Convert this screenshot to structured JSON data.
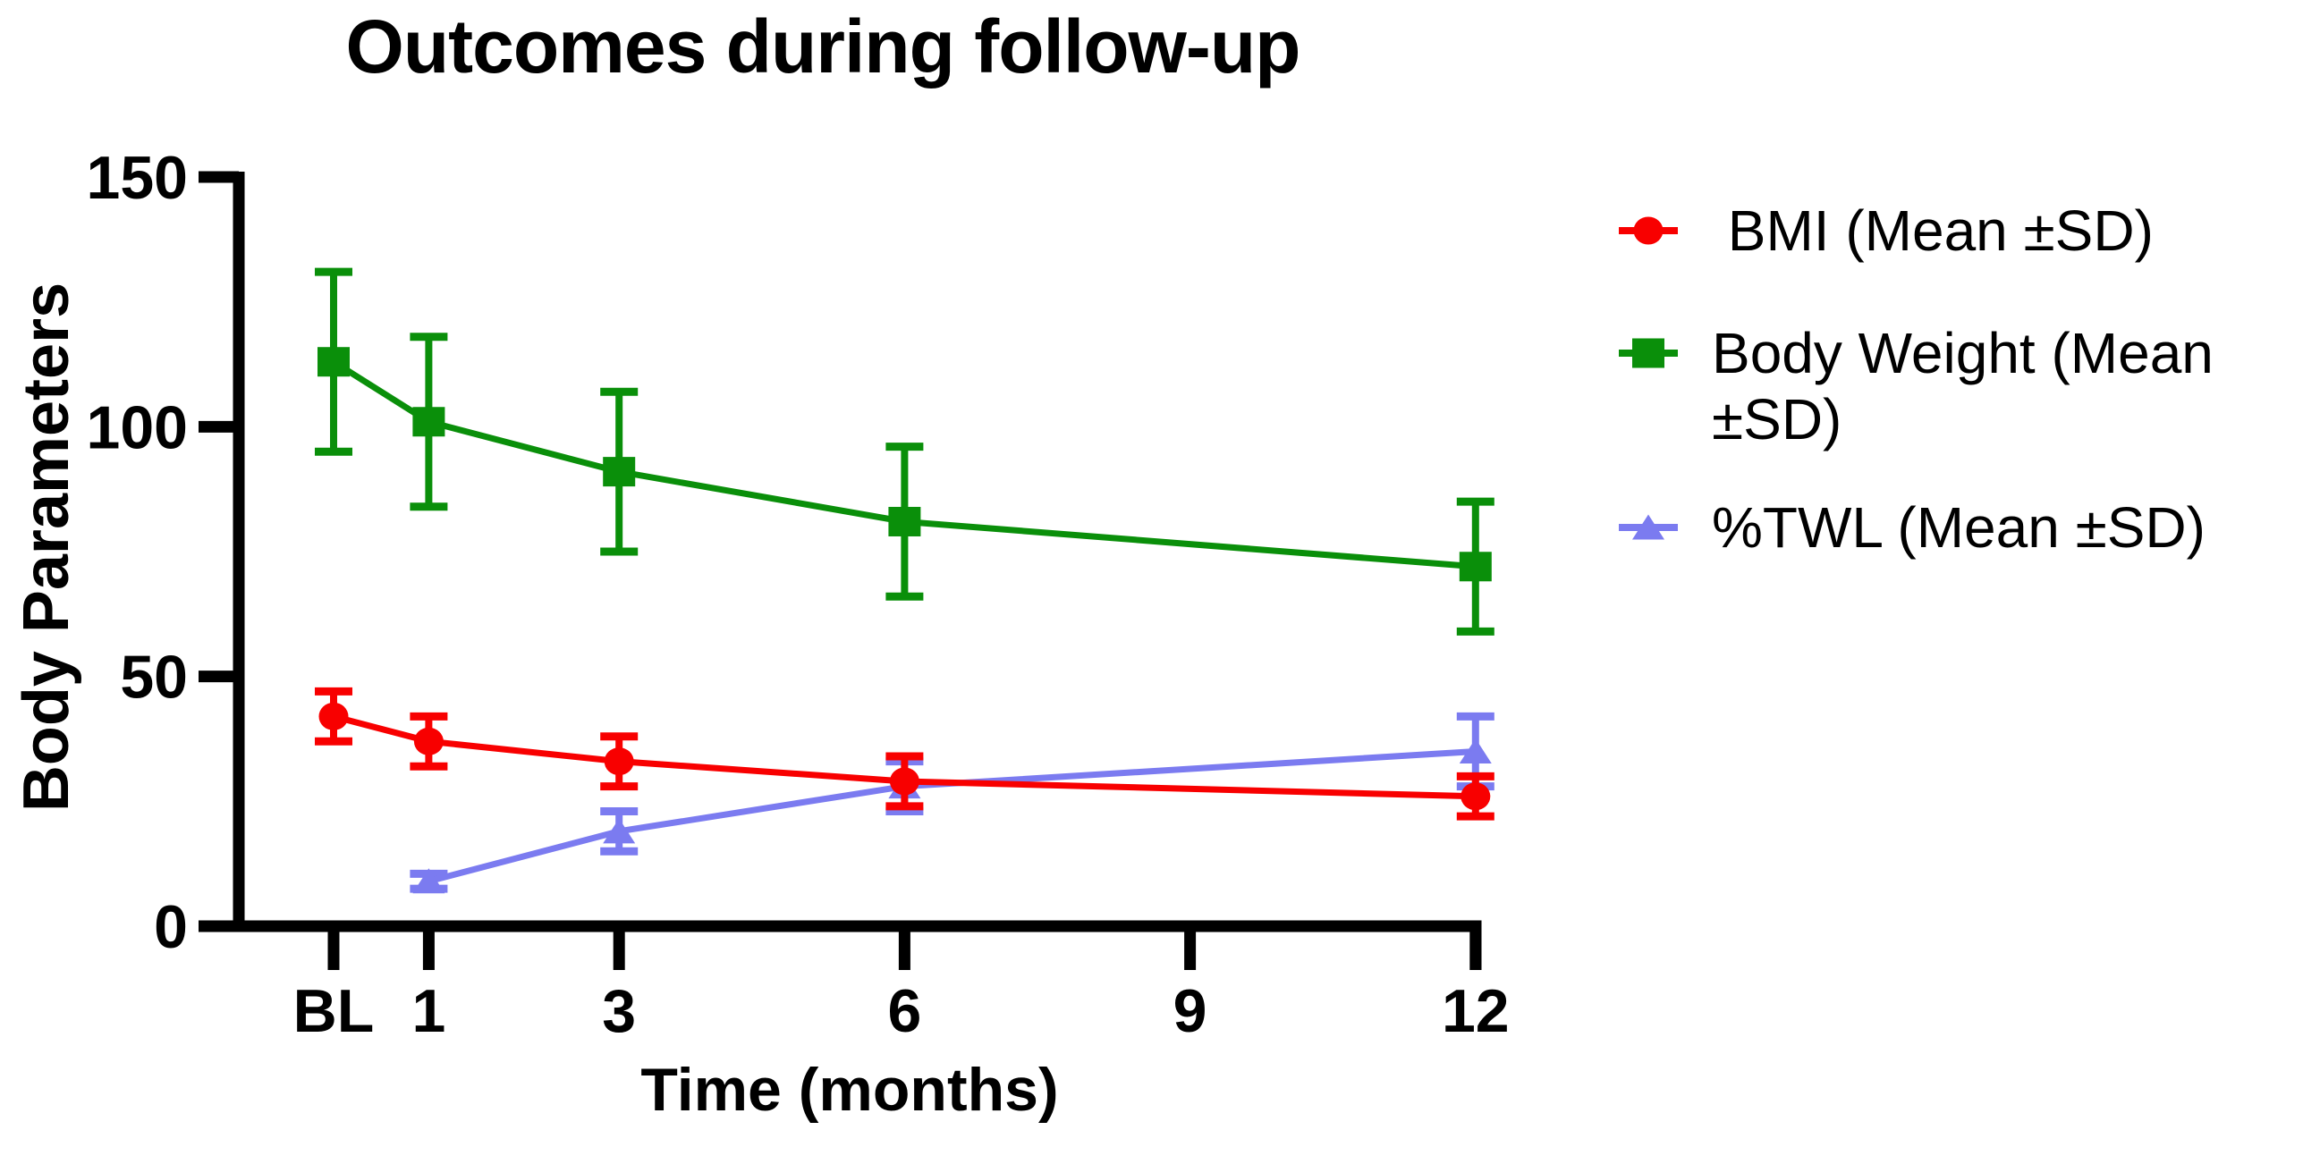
{
  "title": "Outcomes during follow-up",
  "chart_data": {
    "type": "line",
    "title": "Outcomes during follow-up",
    "xlabel": "Time (months)",
    "ylabel": "Body Parameters",
    "x_unit": "months",
    "x_tick_positions": [
      0,
      1,
      3,
      6,
      9,
      12
    ],
    "x_tick_labels": [
      "BL",
      "1",
      "3",
      "6",
      "9",
      "12"
    ],
    "y_ticks": [
      0,
      50,
      100,
      150
    ],
    "ylim": [
      0,
      150
    ],
    "xlim": [
      -1,
      12
    ],
    "grid": false,
    "legend_position": "right",
    "background": "#ffffff",
    "axis_color": "#000000",
    "series": [
      {
        "id": "bmi",
        "name": " BMI (Mean ±SD)",
        "color": "#f80000",
        "marker": "circle",
        "z": 3,
        "x": [
          0,
          1,
          3,
          6,
          12
        ],
        "x_labels": [
          "BL",
          "1",
          "3",
          "6",
          "12"
        ],
        "values": [
          42,
          37,
          33,
          29,
          26
        ],
        "sd": [
          5,
          5,
          5,
          5,
          4
        ]
      },
      {
        "id": "body-weight",
        "name": "Body Weight (Mean ±SD)",
        "color": "#0a8f0a",
        "marker": "square",
        "z": 1,
        "x": [
          0,
          1,
          3,
          6,
          12
        ],
        "x_labels": [
          "BL",
          "1",
          "3",
          "6",
          "12"
        ],
        "values": [
          113,
          101,
          91,
          81,
          72
        ],
        "sd": [
          18,
          17,
          16,
          15,
          13
        ]
      },
      {
        "id": "twl",
        "name": "%TWL (Mean ±SD)",
        "color": "#7b7bf0",
        "marker": "triangle",
        "z": 2,
        "x": [
          1,
          3,
          6,
          12
        ],
        "x_labels": [
          "1",
          "3",
          "6",
          "12"
        ],
        "values": [
          9,
          19,
          28,
          35
        ],
        "sd": [
          1.5,
          4,
          5,
          7
        ]
      }
    ]
  }
}
